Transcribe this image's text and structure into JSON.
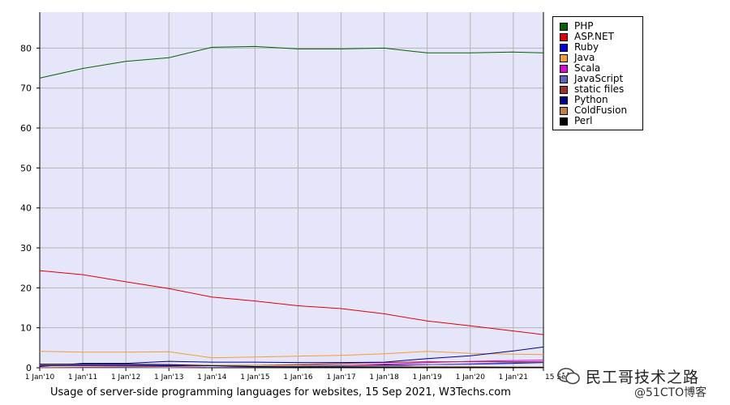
{
  "chart_data": {
    "type": "line",
    "title": "",
    "xlabel": "",
    "ylabel": "",
    "ylim": [
      0,
      89
    ],
    "grid": true,
    "legend_position": "right-top",
    "x_ticks": [
      "1 Jan'10",
      "1 Jan'11",
      "1 Jan'12",
      "1 Jan'13",
      "1 Jan'14",
      "1 Jan'15",
      "1 Jan'16",
      "1 Jan'17",
      "1 Jan'18",
      "1 Jan'19",
      "1 Jan'20",
      "1 Jan'21",
      "15 Sep"
    ],
    "x_tick_positions": [
      0,
      1,
      2,
      3,
      4,
      5,
      6,
      7,
      8,
      9,
      10,
      11,
      11.7
    ],
    "y_ticks": [
      0,
      10,
      20,
      30,
      40,
      50,
      60,
      70,
      80
    ],
    "x": [
      0,
      1,
      2,
      3,
      4,
      5,
      6,
      7,
      8,
      9,
      10,
      11,
      11.7
    ],
    "series": [
      {
        "name": "PHP",
        "color": "#006400",
        "values": [
          72.5,
          74.9,
          76.7,
          77.6,
          80.2,
          80.4,
          79.8,
          79.8,
          80.0,
          78.8,
          78.8,
          79.0,
          78.8
        ]
      },
      {
        "name": "ASP.NET",
        "color": "#e00000",
        "values": [
          24.3,
          23.3,
          21.5,
          19.8,
          17.7,
          16.7,
          15.5,
          14.8,
          13.5,
          11.7,
          10.5,
          9.2,
          8.3
        ]
      },
      {
        "name": "Ruby",
        "color": "#0000e0",
        "values": [
          0.5,
          0.5,
          0.5,
          0.5,
          0.5,
          0.6,
          0.6,
          0.6,
          0.7,
          0.8,
          0.9,
          1.1,
          1.3
        ]
      },
      {
        "name": "Java",
        "color": "#f0a030",
        "values": [
          4.1,
          3.9,
          3.9,
          4.0,
          2.5,
          2.7,
          2.9,
          3.1,
          3.5,
          4.1,
          3.6,
          3.4,
          3.3
        ]
      },
      {
        "name": "Scala",
        "color": "#e000e0",
        "values": [
          0.0,
          0.0,
          0.0,
          0.0,
          0.1,
          0.2,
          0.3,
          0.5,
          0.9,
          1.3,
          1.6,
          1.8,
          1.9
        ]
      },
      {
        "name": "JavaScript",
        "color": "#6060c0",
        "values": [
          0.0,
          0.0,
          0.0,
          0.0,
          0.1,
          0.2,
          0.3,
          0.4,
          0.5,
          0.8,
          1.0,
          1.3,
          1.4
        ]
      },
      {
        "name": "static files",
        "color": "#a03030",
        "values": [
          0.0,
          0.1,
          0.2,
          0.3,
          0.5,
          0.6,
          0.8,
          1.1,
          1.3,
          1.5,
          1.5,
          1.5,
          1.5
        ]
      },
      {
        "name": "Python",
        "color": "#000090",
        "values": [
          0.3,
          1.1,
          1.1,
          1.6,
          1.4,
          1.4,
          1.3,
          1.3,
          1.4,
          2.3,
          3.0,
          4.2,
          5.2
        ]
      },
      {
        "name": "ColdFusion",
        "color": "#c08040",
        "values": [
          0.7,
          0.7,
          0.7,
          0.7,
          0.6,
          0.6,
          0.6,
          0.5,
          0.5,
          0.3,
          0.3,
          0.2,
          0.2
        ]
      },
      {
        "name": "Perl",
        "color": "#000000",
        "values": [
          0.9,
          0.9,
          0.9,
          0.8,
          0.5,
          0.3,
          0.2,
          0.2,
          0.2,
          0.1,
          0.1,
          0.1,
          0.1
        ]
      }
    ]
  },
  "caption": "Usage of server-side programming languages for websites, 15 Sep 2021, W3Techs.com",
  "watermark": {
    "line1": "民工哥技术之路",
    "line2": "@51CTO博客"
  },
  "colors": {
    "plot_background": "#e6e6fa",
    "grid": "#b4b4b4"
  }
}
